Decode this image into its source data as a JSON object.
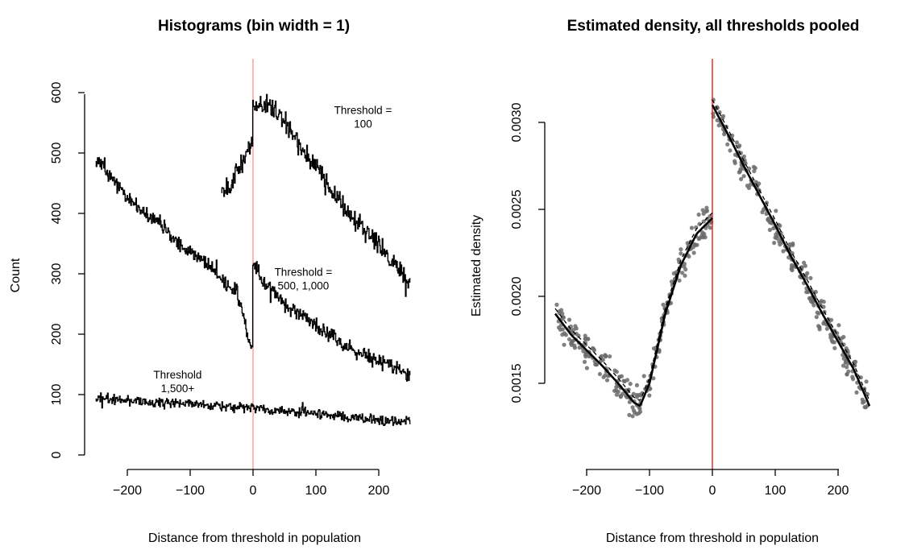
{
  "chart_data": [
    {
      "type": "line",
      "title": "Histograms (bin width = 1)",
      "xlabel": "Distance from threshold in population",
      "ylabel": "Count",
      "xlim": [
        -250,
        250
      ],
      "ylim": [
        0,
        630
      ],
      "x_ticks": [
        -200,
        -100,
        0,
        100,
        200
      ],
      "x_tick_labels": [
        "−200",
        "−100",
        "0",
        "100",
        "200"
      ],
      "y_ticks": [
        0,
        100,
        200,
        300,
        400,
        500,
        600
      ],
      "y_tick_labels": [
        "0",
        "100",
        "200",
        "300",
        "400",
        "500",
        "600"
      ],
      "cutoff": 0,
      "cutoff_color": "#ff8a80",
      "line_color": "#000000",
      "series": [
        {
          "x": [
            -50,
            -40,
            -30,
            -20,
            -10,
            -1,
            0,
            25,
            50,
            75,
            100,
            125,
            150,
            175,
            200,
            225,
            250
          ],
          "values": [
            440,
            445,
            460,
            480,
            500,
            520,
            580,
            580,
            555,
            510,
            480,
            440,
            400,
            375,
            350,
            315,
            285
          ]
        },
        {
          "x": [
            -250,
            -225,
            -200,
            -175,
            -150,
            -125,
            -100,
            -75,
            -50,
            -25,
            -1,
            0,
            25,
            50,
            75,
            100,
            125,
            150,
            175,
            200,
            225,
            250
          ],
          "values": [
            490,
            460,
            425,
            405,
            385,
            355,
            335,
            320,
            290,
            270,
            170,
            315,
            280,
            250,
            230,
            215,
            195,
            180,
            165,
            155,
            145,
            135
          ]
        },
        {
          "x": [
            -250,
            -200,
            -150,
            -100,
            -50,
            0,
            50,
            100,
            150,
            200,
            250
          ],
          "values": [
            95,
            90,
            88,
            84,
            80,
            78,
            73,
            68,
            63,
            58,
            55
          ]
        }
      ],
      "annotations": [
        {
          "text": [
            "Threshold =",
            "100"
          ],
          "x": 175,
          "y": 565
        },
        {
          "text": [
            "Threshold =",
            "500, 1,000"
          ],
          "x": 80,
          "y": 297
        },
        {
          "text": [
            "Threshold",
            "1,500+"
          ],
          "x": -120,
          "y": 127
        }
      ]
    },
    {
      "type": "scatter",
      "title": "Estimated density, all thresholds pooled",
      "xlabel": "Distance from threshold in population",
      "ylabel": "Estimated density",
      "xlim": [
        -255,
        260
      ],
      "ylim": [
        0.00108,
        0.00325
      ],
      "x_ticks": [
        -200,
        -100,
        0,
        100,
        200
      ],
      "x_tick_labels": [
        "−200",
        "−100",
        "0",
        "100",
        "200"
      ],
      "y_ticks": [
        0.0015,
        0.002,
        0.0025,
        0.003
      ],
      "y_tick_labels": [
        "0.0015",
        "0.0020",
        "0.0025",
        "0.0030"
      ],
      "cutoff": 0,
      "cutoff_color": "#e81c1c",
      "point_color": "#6b6b6b",
      "fit_left": {
        "x": [
          -250,
          -225,
          -200,
          -175,
          -150,
          -125,
          -115,
          -100,
          -75,
          -50,
          -25,
          0
        ],
        "y": [
          0.0019,
          0.00178,
          0.00169,
          0.0016,
          0.0015,
          0.00139,
          0.00137,
          0.0015,
          0.0019,
          0.00218,
          0.00236,
          0.00245
        ]
      },
      "fit_right": {
        "x": [
          0,
          25,
          50,
          75,
          100,
          125,
          150,
          175,
          200,
          225,
          250
        ],
        "y": [
          0.0031,
          0.00293,
          0.00275,
          0.00258,
          0.00241,
          0.00223,
          0.00207,
          0.0019,
          0.00174,
          0.00158,
          0.00137
        ]
      },
      "points_per_side": 250
    }
  ]
}
